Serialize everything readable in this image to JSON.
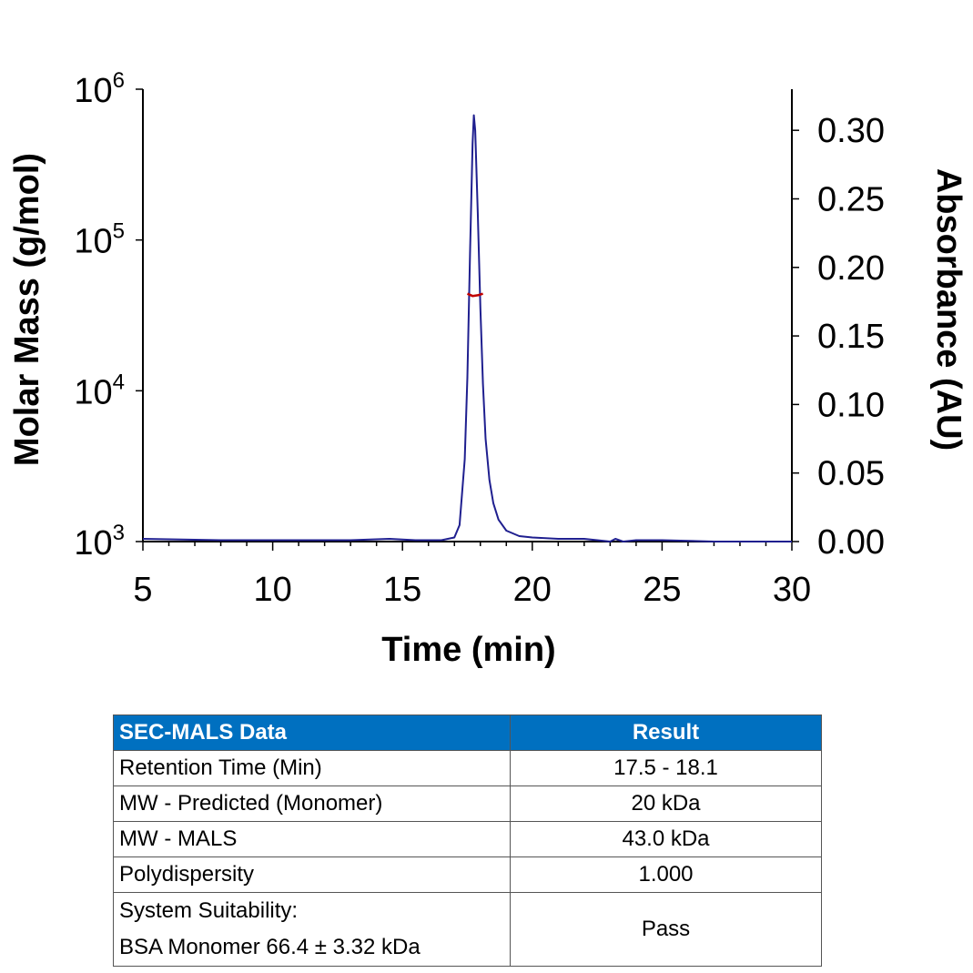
{
  "chart_data": {
    "type": "line",
    "xlabel": "Time (min)",
    "ylabel_left": "Molar Mass (g/mol)",
    "ylabel_right": "Absorbance (AU)",
    "xlim": [
      5,
      30
    ],
    "x_ticks": [
      "5",
      "10",
      "15",
      "20",
      "25",
      "30"
    ],
    "y_left_scale": "log",
    "y_left_lim": [
      1000,
      1000000
    ],
    "y_left_ticks": [
      {
        "base": "10",
        "exp": "3"
      },
      {
        "base": "10",
        "exp": "4"
      },
      {
        "base": "10",
        "exp": "5"
      },
      {
        "base": "10",
        "exp": "6"
      }
    ],
    "y_right_lim": [
      0.0,
      0.33
    ],
    "y_right_ticks": [
      "0.00",
      "0.05",
      "0.10",
      "0.15",
      "0.20",
      "0.25",
      "0.30"
    ],
    "grid": false,
    "series": [
      {
        "axis": "right",
        "color": "#1f1f8f",
        "points": [
          [
            5.0,
            0.002
          ],
          [
            8.0,
            0.001
          ],
          [
            10.0,
            0.001
          ],
          [
            13.0,
            0.001
          ],
          [
            14.5,
            0.002
          ],
          [
            15.5,
            0.001
          ],
          [
            16.5,
            0.001
          ],
          [
            17.0,
            0.003
          ],
          [
            17.2,
            0.012
          ],
          [
            17.4,
            0.06
          ],
          [
            17.5,
            0.12
          ],
          [
            17.6,
            0.21
          ],
          [
            17.7,
            0.29
          ],
          [
            17.75,
            0.311
          ],
          [
            17.8,
            0.3
          ],
          [
            17.9,
            0.24
          ],
          [
            18.0,
            0.17
          ],
          [
            18.1,
            0.115
          ],
          [
            18.2,
            0.075
          ],
          [
            18.35,
            0.045
          ],
          [
            18.5,
            0.028
          ],
          [
            18.7,
            0.016
          ],
          [
            19.0,
            0.008
          ],
          [
            19.5,
            0.004
          ],
          [
            20.0,
            0.003
          ],
          [
            21.0,
            0.002
          ],
          [
            22.0,
            0.002
          ],
          [
            23.0,
            0.0
          ],
          [
            23.2,
            0.002
          ],
          [
            23.5,
            0.0
          ],
          [
            24.0,
            0.001
          ],
          [
            25.0,
            0.001
          ],
          [
            27.0,
            0.0
          ],
          [
            30.0,
            0.0
          ]
        ]
      },
      {
        "axis": "left",
        "color": "#c00000",
        "points": [
          [
            17.5,
            44000
          ],
          [
            17.7,
            42500
          ],
          [
            17.9,
            43000
          ],
          [
            18.1,
            44000
          ]
        ]
      }
    ]
  },
  "table": {
    "headers": [
      "SEC-MALS Data",
      "Result"
    ],
    "rows": [
      {
        "label": [
          "Retention Time (Min)"
        ],
        "value": "17.5 - 18.1"
      },
      {
        "label": [
          "MW - Predicted (Monomer)"
        ],
        "value": "20 kDa"
      },
      {
        "label": [
          "MW - MALS"
        ],
        "value": "43.0 kDa"
      },
      {
        "label": [
          "Polydispersity"
        ],
        "value": "1.000"
      },
      {
        "label": [
          "System Suitability:",
          "BSA Monomer 66.4 ± 3.32 kDa"
        ],
        "value": "Pass"
      }
    ],
    "header_color": "#0070c0"
  }
}
